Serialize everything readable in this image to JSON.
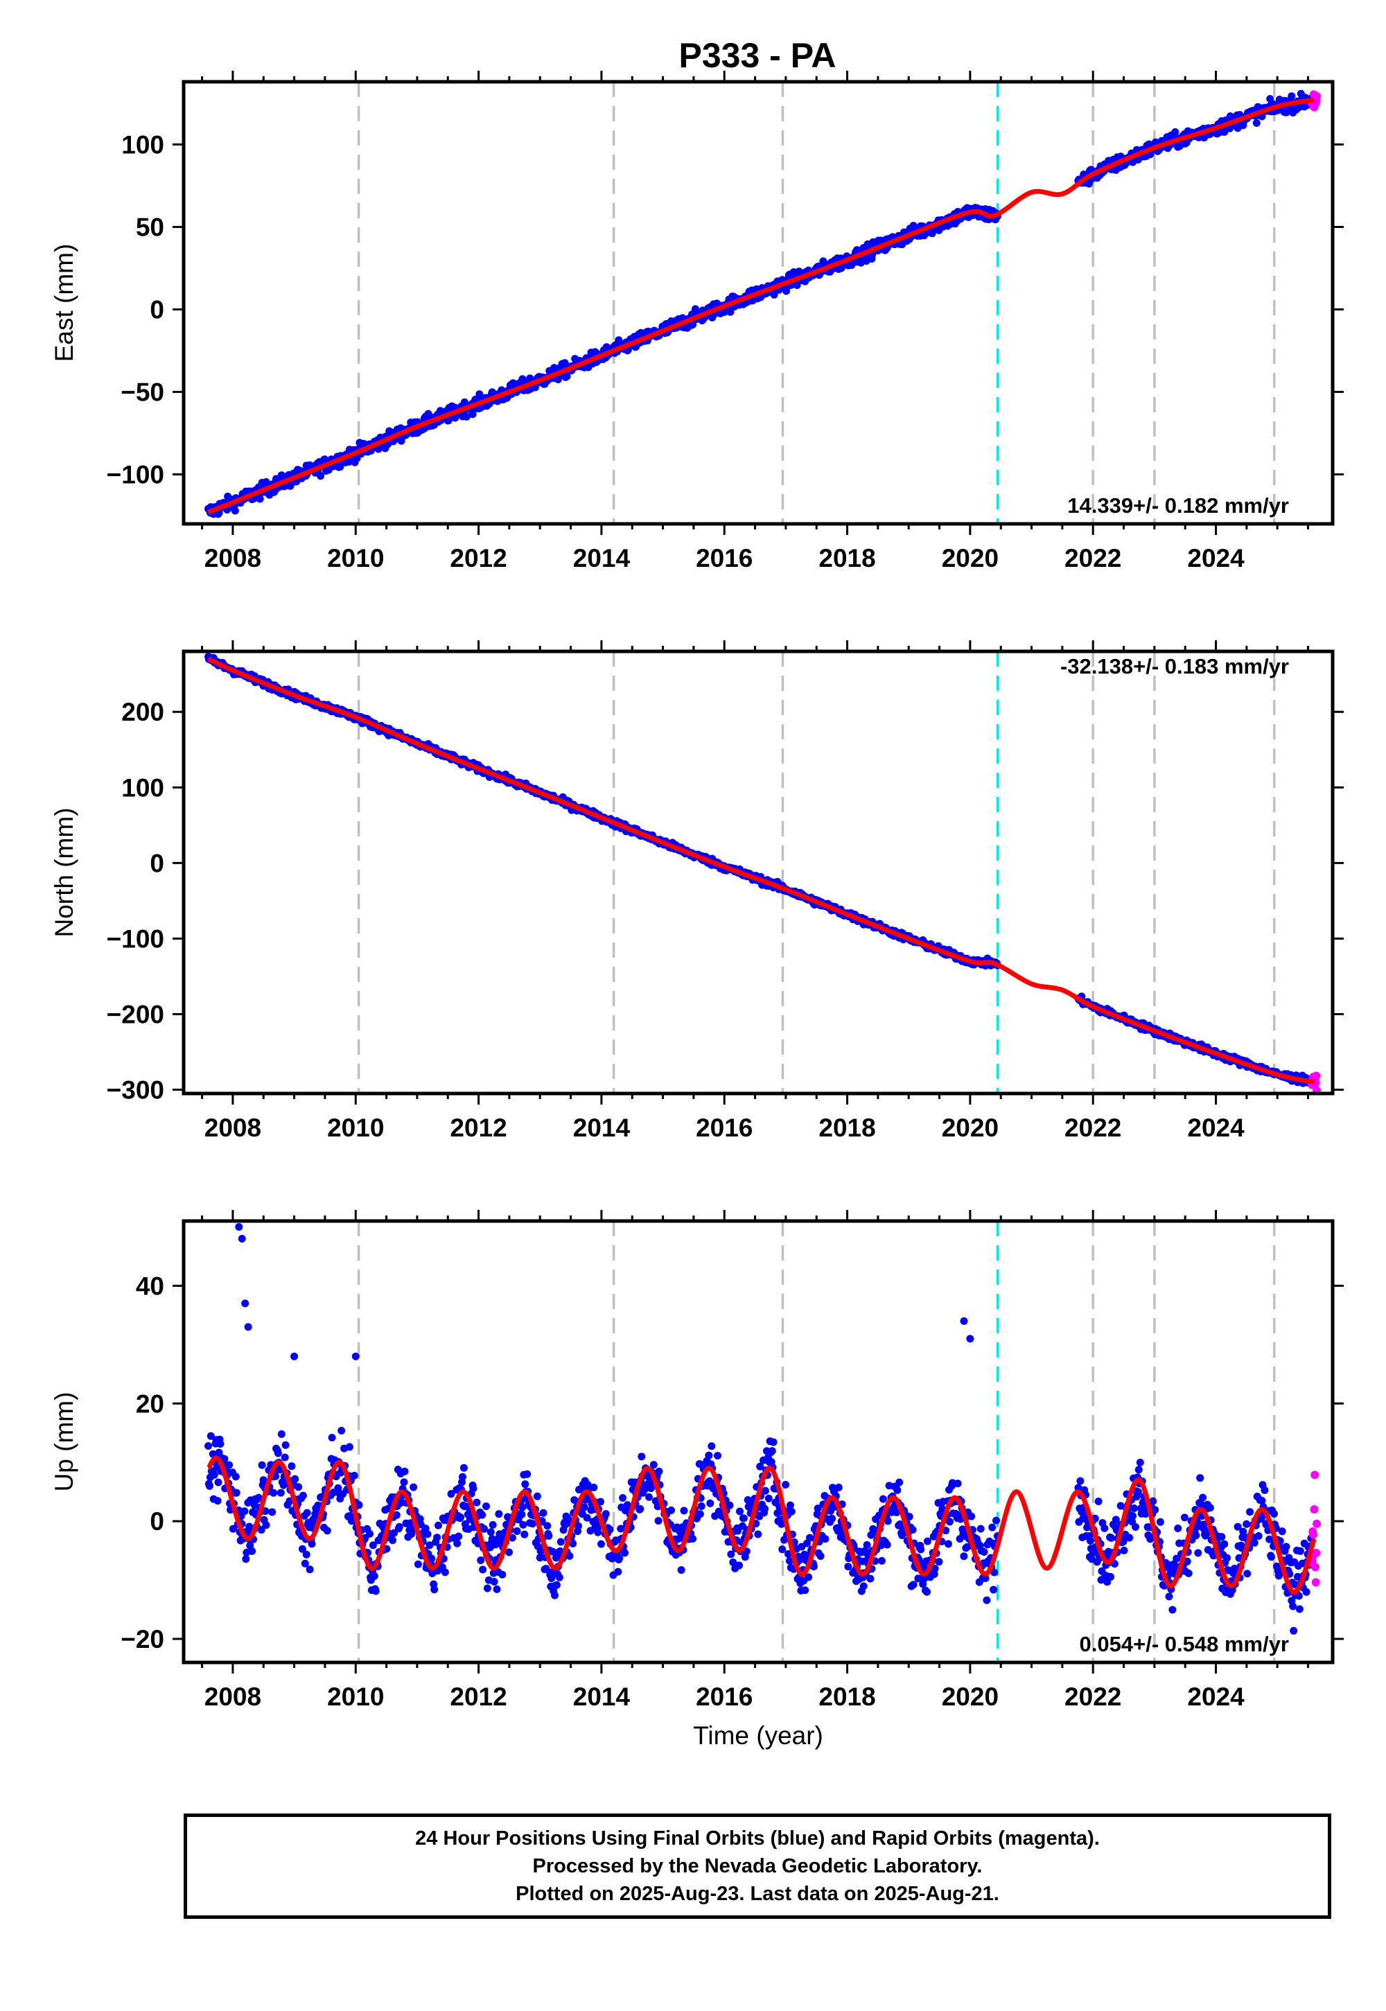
{
  "title": "P333 - PA",
  "colors": {
    "final": "#0000ff",
    "rapid": "#ff00ff",
    "model": "#ff0000",
    "break": "#00e5ee",
    "grid": "#bfbfbf",
    "axis": "#000000"
  },
  "chart_data": [
    {
      "type": "scatter",
      "ylabel": "East (mm)",
      "ylim": [
        -130,
        138
      ],
      "yticks": [
        -100,
        -50,
        0,
        50,
        100
      ],
      "xlim": [
        2007.2,
        2025.9
      ],
      "xticks": [
        2008,
        2010,
        2012,
        2014,
        2016,
        2018,
        2020,
        2022,
        2024
      ],
      "velocity": "14.339+/- 0.182 mm/yr",
      "model": {
        "x": [
          2007.6,
          2008,
          2009,
          2010,
          2011,
          2012,
          2013,
          2014,
          2015,
          2016,
          2017,
          2018,
          2019,
          2020,
          2020.4,
          2021,
          2021.5,
          2022,
          2023,
          2024,
          2025,
          2025.6
        ],
        "y": [
          -123,
          -117,
          -102,
          -87,
          -71,
          -57,
          -43,
          -28,
          -13,
          2,
          16,
          30,
          45,
          59,
          57,
          71,
          70,
          82,
          98,
          110,
          123,
          127
        ]
      }
    },
    {
      "type": "scatter",
      "ylabel": "North (mm)",
      "ylim": [
        -305,
        280
      ],
      "yticks": [
        -300,
        -200,
        -100,
        0,
        100,
        200
      ],
      "xlim": [
        2007.2,
        2025.9
      ],
      "xticks": [
        2008,
        2010,
        2012,
        2014,
        2016,
        2018,
        2020,
        2022,
        2024
      ],
      "velocity": "-32.138+/- 0.183 mm/yr",
      "model": {
        "x": [
          2007.6,
          2008,
          2009,
          2010,
          2011,
          2012,
          2013,
          2014,
          2015,
          2016,
          2017,
          2018,
          2019,
          2020,
          2020.4,
          2021,
          2021.5,
          2022,
          2023,
          2024,
          2025,
          2025.6
        ],
        "y": [
          270,
          255,
          222,
          193,
          158,
          125,
          93,
          60,
          27,
          -5,
          -35,
          -68,
          -100,
          -130,
          -133,
          -160,
          -168,
          -190,
          -222,
          -252,
          -280,
          -290
        ]
      }
    },
    {
      "type": "scatter",
      "ylabel": "Up (mm)",
      "xlabel": "Time (year)",
      "ylim": [
        -24,
        51
      ],
      "yticks": [
        -20,
        0,
        20,
        40
      ],
      "xlim": [
        2007.2,
        2025.9
      ],
      "xticks": [
        2008,
        2010,
        2012,
        2014,
        2016,
        2018,
        2020,
        2022,
        2024
      ],
      "velocity": "0.054+/- 0.548 mm/yr",
      "model": {
        "x": [
          2007.6,
          2007.8,
          2008.25,
          2008.75,
          2009.25,
          2009.75,
          2010.25,
          2010.75,
          2011.25,
          2011.75,
          2012.25,
          2012.75,
          2013.25,
          2013.75,
          2014.25,
          2014.75,
          2015.25,
          2015.75,
          2016.25,
          2016.75,
          2017.25,
          2017.75,
          2018.25,
          2018.75,
          2019.25,
          2019.75,
          2020.25,
          2020.75,
          2021.25,
          2021.75,
          2022.25,
          2022.75,
          2023.25,
          2023.75,
          2024.25,
          2024.75,
          2025.25,
          2025.6
        ],
        "y": [
          9,
          10,
          -3,
          10,
          -3,
          10,
          -8,
          5,
          -8,
          5,
          -8,
          5,
          -8,
          5,
          -5,
          9,
          -5,
          9,
          -5,
          9,
          -9,
          4,
          -9,
          4,
          -9,
          4,
          -9,
          5,
          -8,
          5,
          -7,
          7,
          -11,
          2,
          -11,
          2,
          -12,
          -3
        ]
      },
      "outliers": {
        "x": [
          2008.1,
          2008.15,
          2008.2,
          2008.25,
          2009.0,
          2010.0,
          2019.9,
          2020.0
        ],
        "y": [
          50,
          48,
          37,
          33,
          28,
          28,
          34,
          31
        ]
      }
    }
  ],
  "caption": {
    "line1": "24 Hour Positions Using Final Orbits (blue) and Rapid Orbits (magenta).",
    "line2": "Processed by the Nevada Geodetic Laboratory.",
    "line3": "Plotted on 2025-Aug-23. Last data on 2025-Aug-21."
  }
}
